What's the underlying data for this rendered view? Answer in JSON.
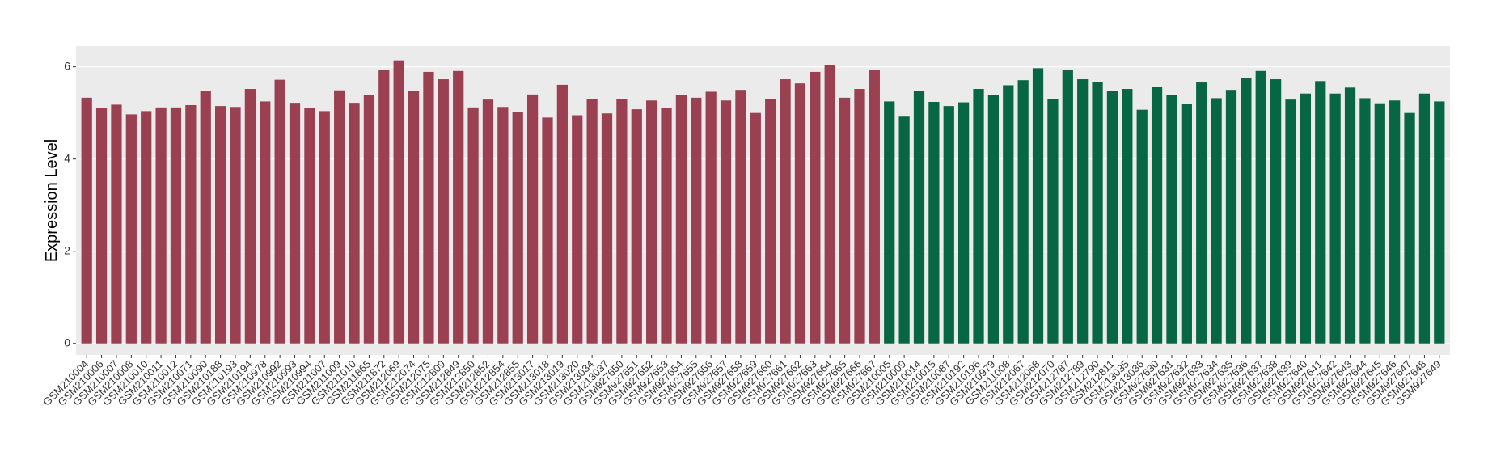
{
  "chart_data": {
    "type": "bar",
    "y_label": "Expression Level",
    "categories": [
      "GSM210004",
      "GSM210006",
      "GSM210007",
      "GSM210008",
      "GSM210010",
      "GSM210011",
      "GSM210012",
      "GSM210071",
      "GSM210090",
      "GSM210188",
      "GSM210193",
      "GSM210194",
      "GSM210978",
      "GSM210992",
      "GSM210993",
      "GSM210994",
      "GSM211007",
      "GSM211009",
      "GSM211010",
      "GSM211865",
      "GSM211872",
      "GSM212069",
      "GSM212074",
      "GSM212075",
      "GSM212809",
      "GSM212849",
      "GSM212850",
      "GSM212852",
      "GSM212854",
      "GSM212855",
      "GSM213017",
      "GSM213018",
      "GSM213019",
      "GSM213020",
      "GSM213034",
      "GSM213037",
      "GSM927650",
      "GSM927651",
      "GSM927652",
      "GSM927653",
      "GSM927654",
      "GSM927655",
      "GSM927656",
      "GSM927657",
      "GSM927658",
      "GSM927659",
      "GSM927660",
      "GSM927661",
      "GSM927662",
      "GSM927663",
      "GSM927664",
      "GSM927665",
      "GSM927666",
      "GSM927667",
      "GSM210005",
      "GSM210009",
      "GSM210014",
      "GSM210015",
      "GSM210087",
      "GSM210192",
      "GSM210196",
      "GSM210979",
      "GSM211008",
      "GSM212067",
      "GSM212068",
      "GSM212070",
      "GSM212787",
      "GSM212789",
      "GSM212790",
      "GSM212811",
      "GSM213035",
      "GSM213036",
      "GSM927630",
      "GSM927631",
      "GSM927632",
      "GSM927633",
      "GSM927634",
      "GSM927635",
      "GSM927636",
      "GSM927637",
      "GSM927638",
      "GSM927639",
      "GSM927640",
      "GSM927641",
      "GSM927642",
      "GSM927643",
      "GSM927644",
      "GSM927645",
      "GSM927646",
      "GSM927647",
      "GSM927648",
      "GSM927649"
    ],
    "values": [
      5.33,
      5.1,
      5.18,
      4.97,
      5.04,
      5.12,
      5.12,
      5.17,
      5.47,
      5.15,
      5.13,
      5.52,
      5.25,
      5.72,
      5.22,
      5.1,
      5.04,
      5.49,
      5.22,
      5.38,
      5.93,
      6.14,
      5.47,
      5.89,
      5.73,
      5.91,
      5.12,
      5.29,
      5.13,
      5.02,
      5.4,
      4.9,
      5.61,
      4.95,
      5.3,
      4.99,
      5.3,
      5.08,
      5.27,
      5.1,
      5.38,
      5.33,
      5.46,
      5.27,
      5.5,
      5.0,
      5.3,
      5.73,
      5.64,
      5.89,
      6.03,
      5.33,
      5.52,
      5.93,
      5.25,
      4.92,
      5.48,
      5.24,
      5.15,
      5.23,
      5.52,
      5.38,
      5.6,
      5.71,
      5.97,
      5.3,
      5.93,
      5.73,
      5.67,
      5.47,
      5.52,
      5.07,
      5.57,
      5.38,
      5.2,
      5.66,
      5.32,
      5.5,
      5.76,
      5.91,
      5.73,
      5.29,
      5.42,
      5.69,
      5.42,
      5.55,
      5.32,
      5.21,
      5.27,
      5.0,
      5.42,
      5.25
    ],
    "colors": [
      "#9b4050",
      "#9b4050",
      "#9b4050",
      "#9b4050",
      "#9b4050",
      "#9b4050",
      "#9b4050",
      "#9b4050",
      "#9b4050",
      "#9b4050",
      "#9b4050",
      "#9b4050",
      "#9b4050",
      "#9b4050",
      "#9b4050",
      "#9b4050",
      "#9b4050",
      "#9b4050",
      "#9b4050",
      "#9b4050",
      "#9b4050",
      "#9b4050",
      "#9b4050",
      "#9b4050",
      "#9b4050",
      "#9b4050",
      "#9b4050",
      "#9b4050",
      "#9b4050",
      "#9b4050",
      "#9b4050",
      "#9b4050",
      "#9b4050",
      "#9b4050",
      "#9b4050",
      "#9b4050",
      "#9b4050",
      "#9b4050",
      "#9b4050",
      "#9b4050",
      "#9b4050",
      "#9b4050",
      "#9b4050",
      "#9b4050",
      "#9b4050",
      "#9b4050",
      "#9b4050",
      "#9b4050",
      "#9b4050",
      "#9b4050",
      "#9b4050",
      "#9b4050",
      "#9b4050",
      "#9b4050",
      "#076643",
      "#076643",
      "#076643",
      "#076643",
      "#076643",
      "#076643",
      "#076643",
      "#076643",
      "#076643",
      "#076643",
      "#076643",
      "#076643",
      "#076643",
      "#076643",
      "#076643",
      "#076643",
      "#076643",
      "#076643",
      "#076643",
      "#076643",
      "#076643",
      "#076643",
      "#076643",
      "#076643",
      "#076643",
      "#076643",
      "#076643",
      "#076643",
      "#076643",
      "#076643",
      "#076643",
      "#076643",
      "#076643",
      "#076643",
      "#076643",
      "#076643",
      "#076643",
      "#076643"
    ],
    "ylim": [
      -0.25,
      6.45
    ],
    "yticks": [
      0,
      2,
      4,
      6
    ],
    "grid": true
  }
}
